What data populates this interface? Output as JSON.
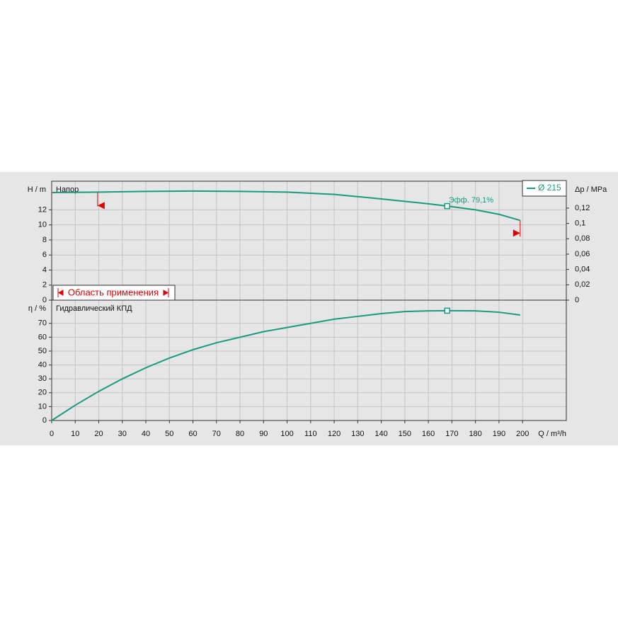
{
  "chart_data": [
    {
      "type": "line",
      "subtitle": "Напор",
      "ylabel": "H / m",
      "y2label": "Δp / MPa",
      "x": [
        0,
        20,
        40,
        60,
        80,
        100,
        120,
        140,
        160,
        168,
        180,
        190,
        199
      ],
      "series": [
        {
          "name": "Ø 215",
          "color": "#1a9a80",
          "values": [
            14.3,
            14.35,
            14.45,
            14.5,
            14.45,
            14.35,
            14.05,
            13.45,
            12.8,
            12.5,
            12.0,
            11.4,
            10.6
          ]
        }
      ],
      "xlim": [
        0,
        218.6
      ],
      "ylim": [
        0,
        15.8
      ],
      "yticks": [
        0,
        2,
        4,
        6,
        8,
        10,
        12
      ],
      "y2lim": [
        0,
        0.155
      ],
      "y2ticks": [
        0,
        {
          "value": 0.02,
          "label": "0,02"
        },
        {
          "value": 0.04,
          "label": "0,04"
        },
        {
          "value": 0.06,
          "label": "0,06"
        },
        {
          "value": 0.08,
          "label": "0,08"
        },
        {
          "value": 0.1,
          "label": "0,1"
        },
        {
          "value": 0.12,
          "label": "0,12"
        }
      ],
      "duty_point": {
        "x": 168,
        "y": 12.5,
        "label": "Эфф.  79,1%"
      },
      "range": {
        "label": "Область применения",
        "x": [
          19.5,
          199
        ]
      },
      "legend": "top-right",
      "grid": true
    },
    {
      "type": "line",
      "subtitle": "Гидравлический КПД",
      "ylabel": "η / %",
      "xlabel": "Q / m³/h",
      "x": [
        0,
        10,
        20,
        30,
        40,
        50,
        60,
        70,
        80,
        90,
        100,
        110,
        120,
        130,
        140,
        150,
        160,
        168,
        180,
        190,
        199
      ],
      "series": [
        {
          "color": "#1a9a80",
          "values": [
            0,
            11,
            21,
            30,
            38,
            45,
            51,
            56,
            60,
            64,
            67,
            70,
            73,
            75,
            77,
            78.5,
            79,
            79.1,
            79,
            78,
            76
          ]
        }
      ],
      "xlim": [
        0,
        218.6
      ],
      "ylim": [
        0,
        86.7
      ],
      "yticks": [
        0,
        10,
        20,
        30,
        40,
        50,
        60,
        70
      ],
      "xticks": [
        0,
        10,
        20,
        30,
        40,
        50,
        60,
        70,
        80,
        90,
        100,
        110,
        120,
        130,
        140,
        150,
        160,
        170,
        180,
        190,
        200
      ],
      "duty_point": {
        "x": 168,
        "y": 79.1
      },
      "grid": true
    }
  ]
}
